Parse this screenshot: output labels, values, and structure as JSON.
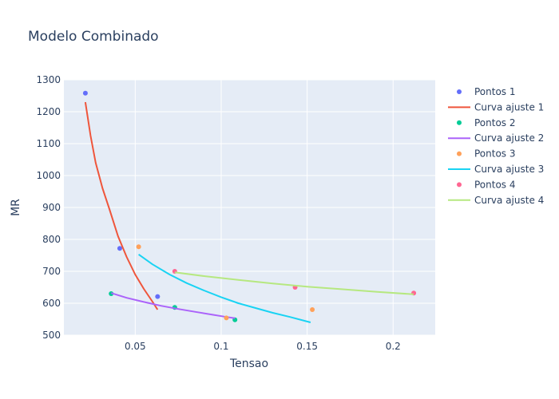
{
  "chart_data": {
    "type": "scatter",
    "title": "Modelo Combinado",
    "xlabel": "Tensao",
    "ylabel": "MR",
    "xlim": [
      0.0085,
      0.2245
    ],
    "ylim": [
      500,
      1300
    ],
    "xticks": [
      0.05,
      0.1,
      0.15,
      0.2
    ],
    "xtick_labels": [
      "0.05",
      "0.1",
      "0.15",
      "0.2"
    ],
    "yticks": [
      500,
      600,
      700,
      800,
      900,
      1000,
      1100,
      1200,
      1300
    ],
    "ytick_labels": [
      "500",
      "600",
      "700",
      "800",
      "900",
      "1000",
      "1100",
      "1200",
      "1300"
    ],
    "grid": true,
    "legend_position": "right",
    "series": [
      {
        "name": "Pontos 1",
        "mode": "markers",
        "color": "#636efa",
        "x": [
          0.021,
          0.041,
          0.063
        ],
        "y": [
          1258,
          772,
          621
        ]
      },
      {
        "name": "Curva ajuste 1",
        "mode": "lines",
        "color": "#EF553B",
        "x": [
          0.021,
          0.024,
          0.027,
          0.031,
          0.035,
          0.04,
          0.045,
          0.05,
          0.055,
          0.06,
          0.063
        ],
        "y": [
          1230,
          1125,
          1040,
          960,
          895,
          810,
          745,
          690,
          645,
          605,
          580
        ]
      },
      {
        "name": "Pontos 2",
        "mode": "markers",
        "color": "#00cc96",
        "x": [
          0.036,
          0.073,
          0.108
        ],
        "y": [
          630,
          587,
          548
        ]
      },
      {
        "name": "Curva ajuste 2",
        "mode": "lines",
        "color": "#ab63fa",
        "x": [
          0.036,
          0.045,
          0.055,
          0.065,
          0.075,
          0.085,
          0.095,
          0.103,
          0.108
        ],
        "y": [
          632,
          617,
          604,
          592,
          582,
          573,
          564,
          557,
          553
        ]
      },
      {
        "name": "Pontos 3",
        "mode": "markers",
        "color": "#FFA15A",
        "x": [
          0.052,
          0.103,
          0.153
        ],
        "y": [
          777,
          554,
          580
        ]
      },
      {
        "name": "Curva ajuste 3",
        "mode": "lines",
        "color": "#19d3f3",
        "x": [
          0.052,
          0.06,
          0.07,
          0.08,
          0.09,
          0.1,
          0.11,
          0.12,
          0.13,
          0.14,
          0.152
        ],
        "y": [
          753,
          722,
          690,
          663,
          640,
          619,
          600,
          585,
          570,
          557,
          540
        ]
      },
      {
        "name": "Pontos 4",
        "mode": "markers",
        "color": "#FF6692",
        "x": [
          0.073,
          0.143,
          0.212
        ],
        "y": [
          700,
          650,
          632
        ]
      },
      {
        "name": "Curva ajuste 4",
        "mode": "lines",
        "color": "#B6E880",
        "x": [
          0.073,
          0.09,
          0.11,
          0.13,
          0.15,
          0.17,
          0.19,
          0.212
        ],
        "y": [
          697,
          685,
          673,
          662,
          652,
          644,
          636,
          628
        ]
      }
    ]
  }
}
